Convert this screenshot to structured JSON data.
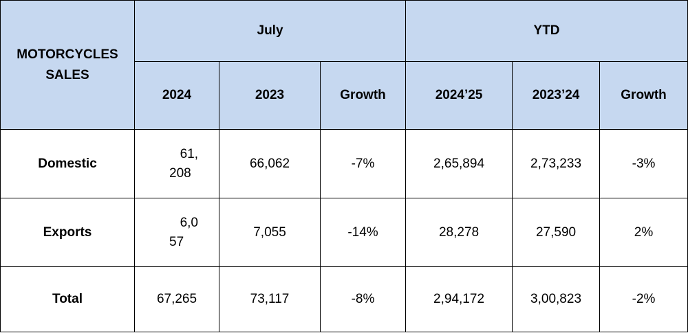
{
  "table": {
    "corner_label": "MOTORCYCLES SALES",
    "groups": [
      {
        "label": "July"
      },
      {
        "label": "YTD"
      }
    ],
    "columns": [
      "2024",
      "2023",
      "Growth",
      "2024’25",
      "2023’24",
      "Growth"
    ],
    "rows": [
      {
        "label": "Domestic",
        "jul_2024_line1": "61,",
        "jul_2024_line2": "208",
        "jul_2023": "66,062",
        "jul_growth": "-7%",
        "ytd_2425": "2,65,894",
        "ytd_2324": "2,73,233",
        "ytd_growth": "-3%"
      },
      {
        "label": "Exports",
        "jul_2024_line1": "6,0",
        "jul_2024_line2": "57",
        "jul_2023": "7,055",
        "jul_growth": "-14%",
        "ytd_2425": "28,278",
        "ytd_2324": "27,590",
        "ytd_growth": "2%"
      },
      {
        "label": "Total",
        "jul_2024": "67,265",
        "jul_2023": "73,117",
        "jul_growth": "-8%",
        "ytd_2425": "2,94,172",
        "ytd_2324": "3,00,823",
        "ytd_growth": "-2%"
      }
    ],
    "colors": {
      "header_fill": "#c6d8f0",
      "border": "#000000"
    }
  }
}
